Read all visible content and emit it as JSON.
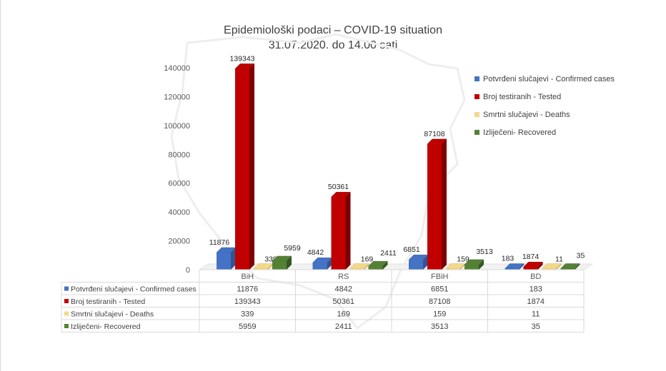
{
  "chart_data": {
    "type": "bar",
    "title": "Epidemiološki podaci – COVID-19 situation",
    "subtitle": "31.07.2020. do 14.00 sati",
    "categories": [
      "BiH",
      "RS",
      "FBiH",
      "BD"
    ],
    "ylim": [
      0,
      140000
    ],
    "yticks": [
      "0",
      "20000",
      "40000",
      "60000",
      "80000",
      "100000",
      "120000",
      "140000"
    ],
    "grid": false,
    "legend_position": "right",
    "data_table": true,
    "series": [
      {
        "name": "Potvrđeni slučajevi - Confirmed cases",
        "color": "#4472c4",
        "dark": "#2f5597",
        "values": [
          11876,
          4842,
          6851,
          183
        ]
      },
      {
        "name": "Broj testiranih - Tested",
        "color": "#c00000",
        "dark": "#7f0000",
        "values": [
          139343,
          50361,
          87108,
          1874
        ]
      },
      {
        "name": "Smrtni slučajevi - Deaths",
        "color": "#f2d98a",
        "dark": "#c9a84f",
        "values": [
          339,
          169,
          159,
          11
        ]
      },
      {
        "name": "Izliječeni- Recovered",
        "color": "#548235",
        "dark": "#375623",
        "values": [
          5959,
          2411,
          3513,
          35
        ]
      }
    ]
  }
}
